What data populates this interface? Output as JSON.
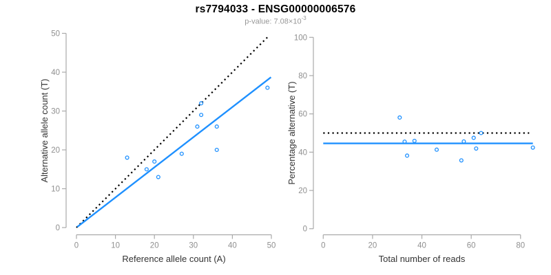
{
  "header": {
    "title": "rs7794033 - ENSG00000006576",
    "pvalue_prefix": "p-value: 7.08×10",
    "pvalue_exponent": "-3"
  },
  "colors": {
    "accent_blue": "#1E90FF",
    "identity_black": "#000000",
    "axis_line": "#a9a9a9",
    "tick_label": "#8f8f8f",
    "axis_title": "#333333",
    "subtitle_gray": "#979797",
    "background": "#FFFFFF"
  },
  "chart_data": [
    {
      "type": "scatter",
      "name": "allele-counts-scatter",
      "title": "rs7794033 - ENSG00000006576",
      "subtitle": "p-value: 7.08×10^-3",
      "xlabel": "Reference allele count (A)",
      "ylabel": "Alternative allele count (T)",
      "xlim": [
        0,
        50
      ],
      "ylim": [
        0,
        50
      ],
      "xticks": [
        0,
        10,
        20,
        30,
        40,
        50
      ],
      "yticks": [
        0,
        10,
        20,
        30,
        40,
        50
      ],
      "grid": false,
      "legend": "none",
      "marker": "open-circle",
      "points": [
        [
          13,
          18
        ],
        [
          18,
          15
        ],
        [
          20,
          17
        ],
        [
          21,
          13
        ],
        [
          27,
          19
        ],
        [
          31,
          26
        ],
        [
          32,
          29
        ],
        [
          32,
          32
        ],
        [
          36,
          20
        ],
        [
          36,
          26
        ],
        [
          49,
          36
        ]
      ],
      "lines": [
        {
          "name": "identity-line",
          "style": "dotted",
          "color": "#000000",
          "x1": 0,
          "y1": 0,
          "x2": 49,
          "y2": 49
        },
        {
          "name": "fit-line",
          "style": "solid",
          "color": "#1E90FF",
          "x1": 0.2,
          "y1": 0.16,
          "x2": 49.9,
          "y2": 38.7
        }
      ]
    },
    {
      "type": "scatter",
      "name": "percentage-vs-reads-scatter",
      "xlabel": "Total number of reads",
      "ylabel": "Percentage alternative (T)",
      "xlim": [
        0,
        85
      ],
      "ylim": [
        0,
        100
      ],
      "xticks": [
        0,
        20,
        40,
        60,
        80
      ],
      "yticks": [
        0,
        20,
        40,
        60,
        80,
        100
      ],
      "grid": false,
      "legend": "none",
      "marker": "open-circle",
      "points": [
        [
          31,
          58.1
        ],
        [
          33,
          45.5
        ],
        [
          34,
          38.2
        ],
        [
          37,
          45.9
        ],
        [
          46,
          41.3
        ],
        [
          56,
          35.7
        ],
        [
          57,
          45.6
        ],
        [
          61,
          47.5
        ],
        [
          62,
          41.9
        ],
        [
          64,
          50
        ],
        [
          85,
          42.4
        ]
      ],
      "lines": [
        {
          "name": "expected-50pct-line",
          "style": "dotted",
          "color": "#000000",
          "x1": 0,
          "y1": 50,
          "x2": 83.5,
          "y2": 50
        },
        {
          "name": "mean-percentage-line",
          "style": "solid",
          "color": "#1E90FF",
          "x1": 0,
          "y1": 44.6,
          "x2": 85,
          "y2": 44.6
        }
      ]
    }
  ]
}
